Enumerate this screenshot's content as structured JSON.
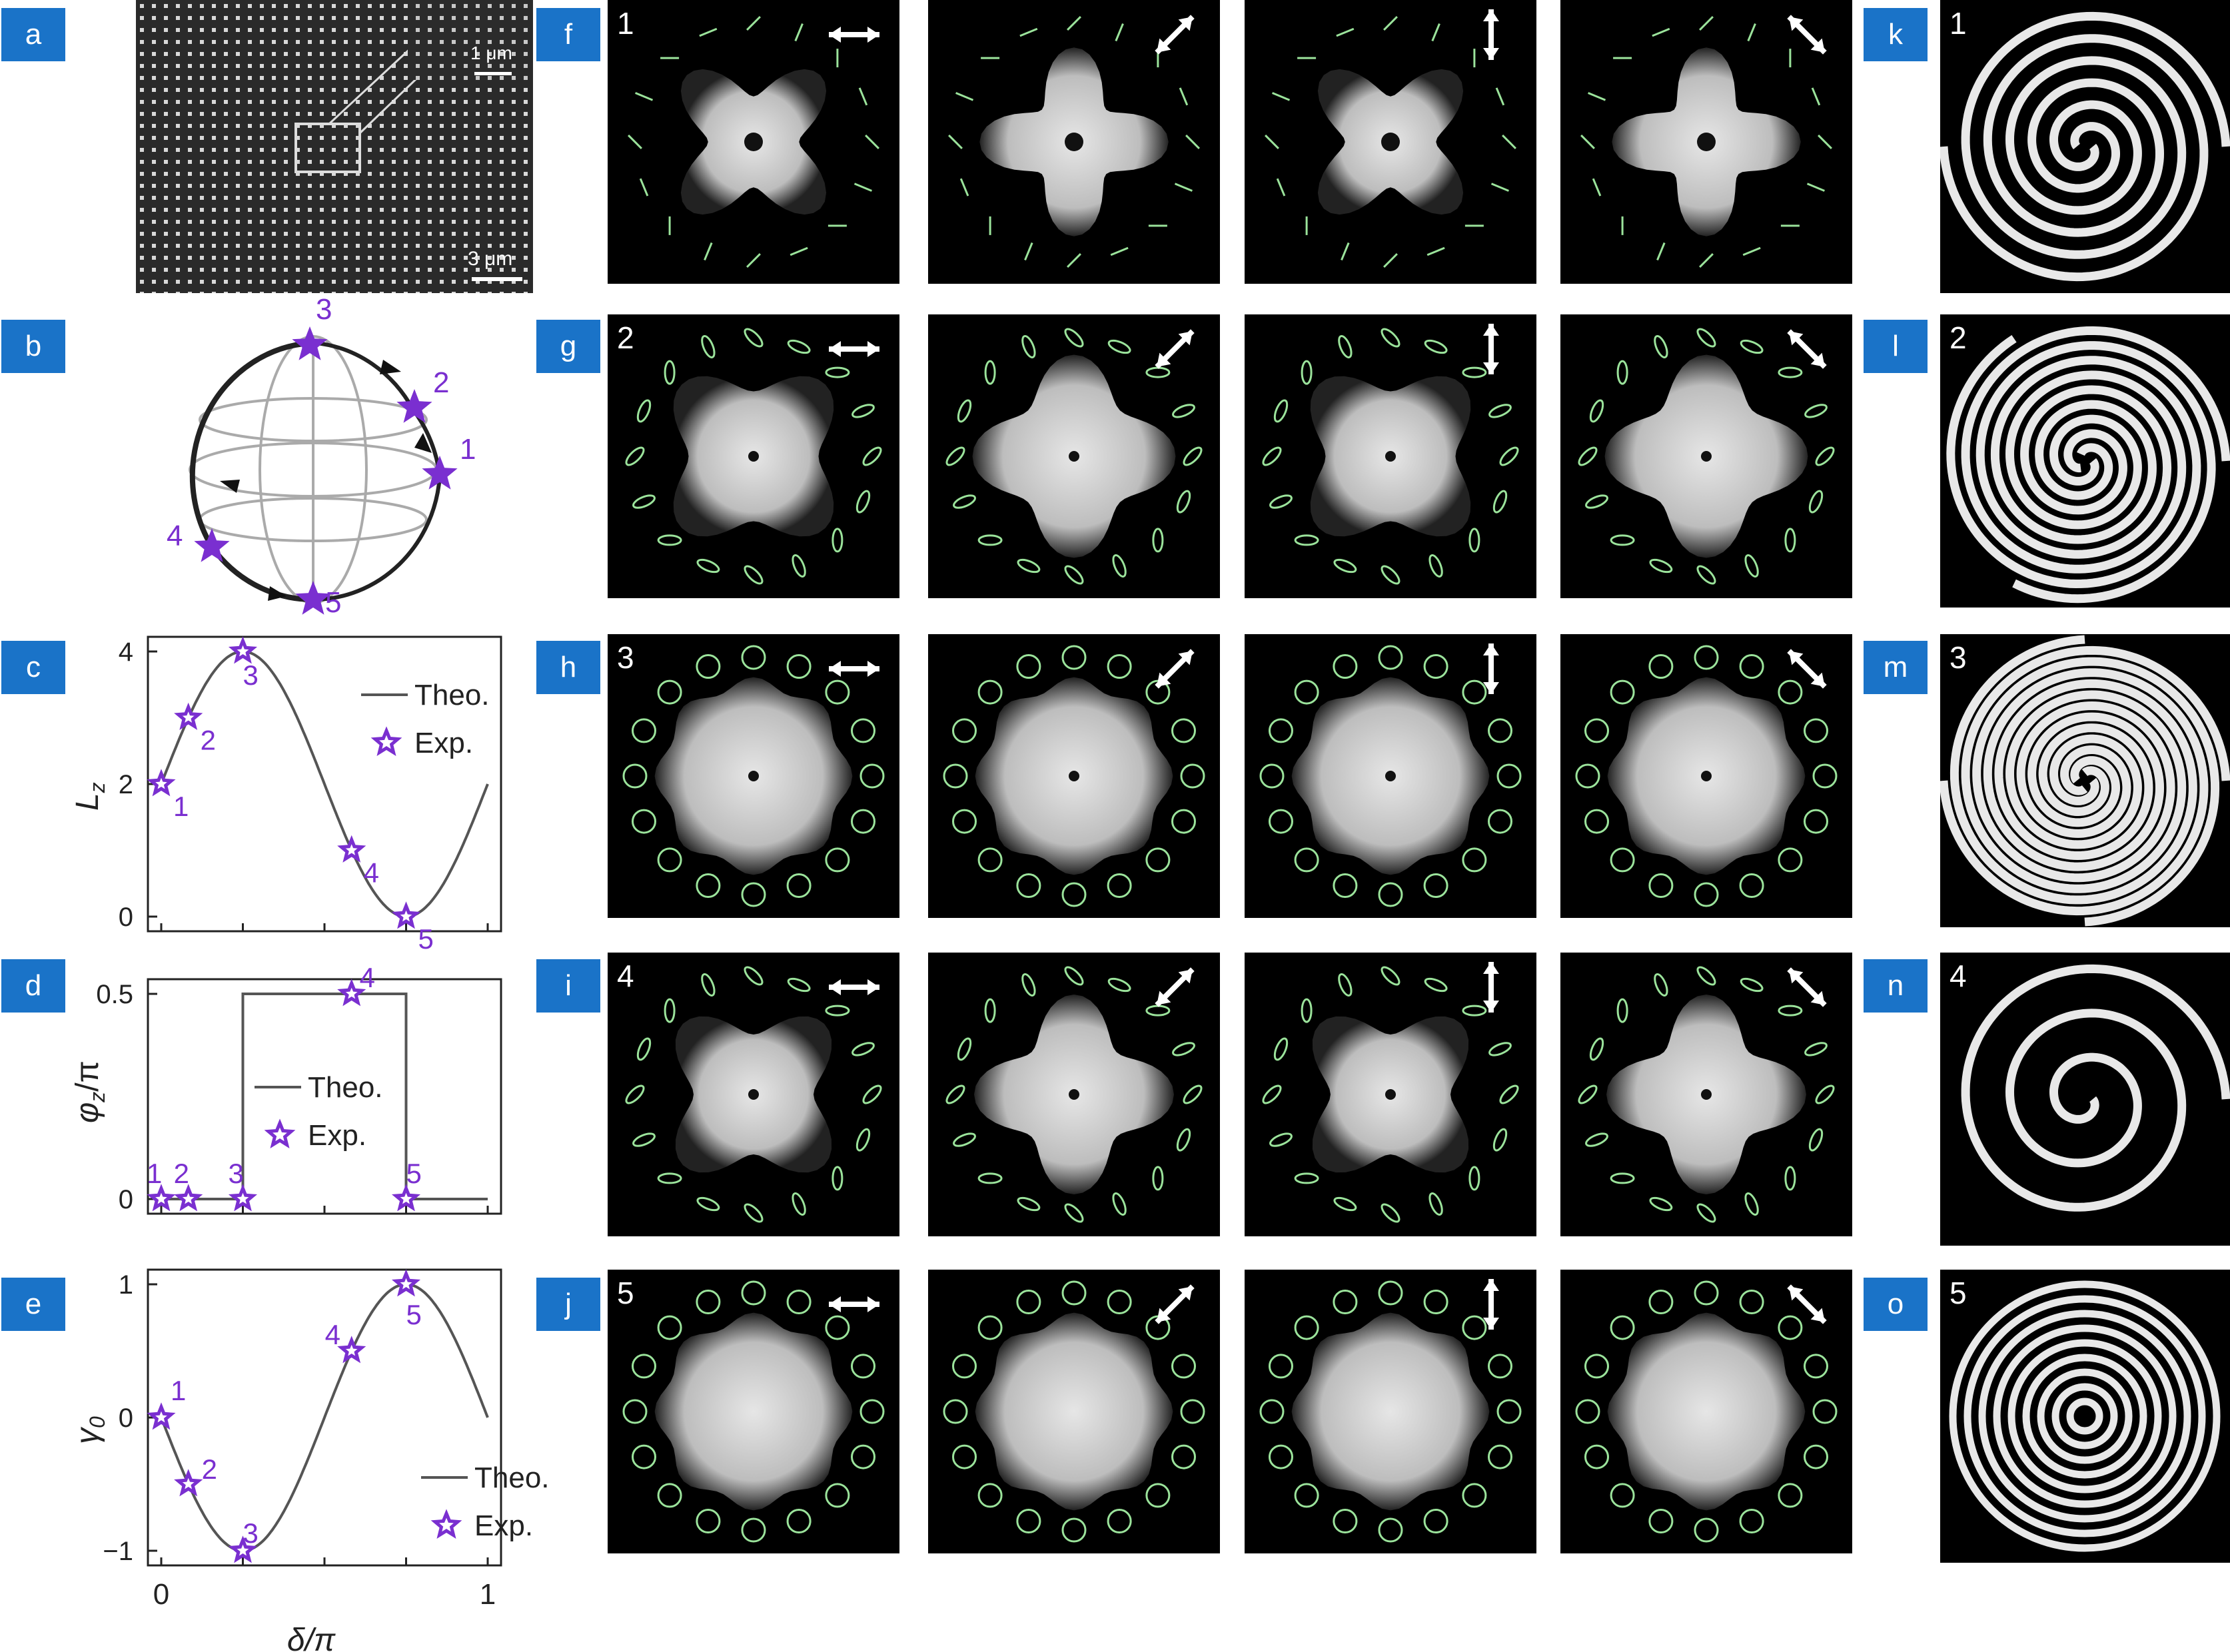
{
  "panel_letters": {
    "a": "a",
    "b": "b",
    "c": "c",
    "d": "d",
    "e": "e",
    "f": "f",
    "g": "g",
    "h": "h",
    "i": "i",
    "j": "j",
    "k": "k",
    "l": "l",
    "m": "m",
    "n": "n",
    "o": "o"
  },
  "sem": {
    "scale_small": "1 μm",
    "scale_large": "3 μm"
  },
  "sphere": {
    "points": [
      "1",
      "2",
      "3",
      "4",
      "5"
    ]
  },
  "row_numbers": [
    "1",
    "2",
    "3",
    "4",
    "5"
  ],
  "polarizer_angles_deg": [
    0,
    45,
    90,
    135
  ],
  "row_ellipse_types": [
    "linear",
    "elliptical",
    "circular",
    "elliptical",
    "circular-rev"
  ],
  "chart_data": [
    {
      "type": "line",
      "panel": "c",
      "ylabel": "L",
      "ylabel_sub": "z",
      "xlabel": "",
      "ylim": [
        0,
        4
      ],
      "yticks": [
        "0",
        "2",
        "4"
      ],
      "xlim": [
        0,
        1
      ],
      "legend": {
        "line": "Theo.",
        "marker": "Exp.",
        "placement": "right-upper"
      },
      "theory": {
        "function": "2+2*sin(2*pi*x)"
      },
      "exp": {
        "x": [
          0,
          0.083,
          0.25,
          0.583,
          0.75
        ],
        "y": [
          2,
          3,
          4,
          1,
          0
        ],
        "labels": [
          "1",
          "2",
          "3",
          "4",
          "5"
        ]
      }
    },
    {
      "type": "line",
      "panel": "d",
      "ylabel": "φ",
      "ylabel_sub": "z",
      "ylabel_suffix": "/π",
      "xlabel": "",
      "ylim": [
        0,
        0.5
      ],
      "yticks": [
        "0",
        "0.5"
      ],
      "xlim": [
        0,
        1
      ],
      "legend": {
        "line": "Theo.",
        "marker": "Exp.",
        "placement": "left-middle"
      },
      "theory": {
        "x": [
          0,
          0.25,
          0.25,
          0.75,
          0.75,
          1
        ],
        "y": [
          0,
          0,
          0.5,
          0.5,
          0,
          0
        ]
      },
      "exp": {
        "x": [
          0,
          0.083,
          0.25,
          0.583,
          0.75
        ],
        "y": [
          0,
          0,
          0,
          0.5,
          0
        ],
        "labels": [
          "1",
          "2",
          "3",
          "4",
          "5"
        ]
      }
    },
    {
      "type": "line",
      "panel": "e",
      "ylabel": "γ",
      "ylabel_sub": "0",
      "xlabel": "δ/π",
      "ylim": [
        -1,
        1
      ],
      "yticks": [
        "−1",
        "0",
        "1"
      ],
      "xlim": [
        0,
        1
      ],
      "xticks": [
        "0",
        "1"
      ],
      "legend": {
        "line": "Theo.",
        "marker": "Exp.",
        "placement": "right-lower"
      },
      "theory": {
        "function": "-sin(2*pi*x)"
      },
      "exp": {
        "x": [
          0,
          0.083,
          0.25,
          0.583,
          0.75
        ],
        "y": [
          0,
          -0.5,
          -1,
          0.5,
          1
        ],
        "labels": [
          "1",
          "2",
          "3",
          "4",
          "5"
        ]
      }
    }
  ],
  "colors": {
    "tag": "#1a73c8",
    "star": "#7a2fd0",
    "green": "#9be39b",
    "theory": "#555555"
  }
}
